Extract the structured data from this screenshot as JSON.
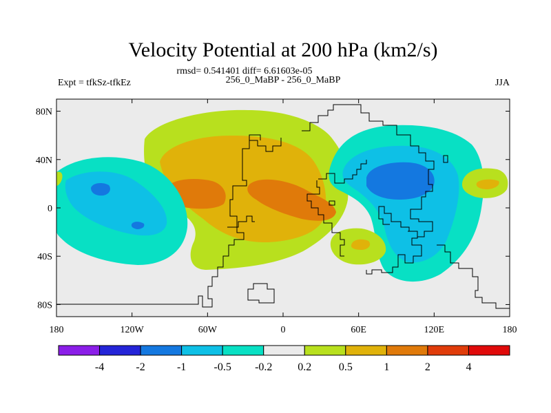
{
  "chart_data": {
    "type": "contour-map",
    "title": "Velocity Potential at 200 hPa (km2/s)",
    "stats": "rmsd= 0.541401 diff= 6.61603e-05",
    "experiment": "Expt = tfkSz-tfkEz",
    "comparison": "256_0_MaBP - 256_0_MaBP",
    "season": "JJA",
    "x_ticks": [
      "180",
      "120W",
      "60W",
      "0",
      "60E",
      "120E",
      "180"
    ],
    "x_values": [
      -180,
      -120,
      -60,
      0,
      60,
      120,
      180
    ],
    "y_ticks": [
      "80N",
      "40N",
      "0",
      "40S",
      "80S"
    ],
    "y_values": [
      80,
      40,
      0,
      -40,
      -80
    ],
    "xlim": [
      -180,
      180
    ],
    "ylim": [
      -90,
      90
    ],
    "colorbar": {
      "labels": [
        "-4",
        "-2",
        "-1",
        "-0.5",
        "-0.2",
        "0.2",
        "0.5",
        "1",
        "2",
        "4"
      ],
      "colors": [
        "#8b1ee8",
        "#2424d8",
        "#1478e0",
        "#0ec0e6",
        "#08e0c4",
        "#ebebeb",
        "#b8e01e",
        "#e0b20a",
        "#e07a0a",
        "#e03c0a",
        "#e00a0a"
      ]
    },
    "regions": [
      {
        "name": "americas-atlantic-high",
        "center": [
          -55,
          22
        ],
        "radii": [
          65,
          35
        ],
        "levels": [
          0.2,
          0.5,
          1
        ]
      },
      {
        "name": "africa-high",
        "center": [
          22,
          8
        ],
        "radii": [
          28,
          12
        ],
        "level": 1
      },
      {
        "name": "south-atlantic-high",
        "center": [
          -30,
          -22
        ],
        "radii": [
          35,
          22
        ],
        "level": 0.2
      },
      {
        "name": "asia-low",
        "center": [
          100,
          12
        ],
        "radii": [
          60,
          42
        ],
        "levels": [
          -0.2,
          -0.5,
          -1
        ]
      },
      {
        "name": "east-pacific-low",
        "center": [
          -155,
          5
        ],
        "radii": [
          38,
          28
        ],
        "levels": [
          -0.2,
          -0.5,
          -1
        ]
      },
      {
        "name": "west-pacific-high",
        "center": [
          160,
          15
        ],
        "radii": [
          16,
          12
        ],
        "levels": [
          0.2,
          0.5
        ]
      },
      {
        "name": "south-indian-high",
        "center": [
          60,
          -30
        ],
        "radii": [
          16,
          12
        ],
        "levels": [
          0.2,
          0.5
        ]
      }
    ]
  }
}
